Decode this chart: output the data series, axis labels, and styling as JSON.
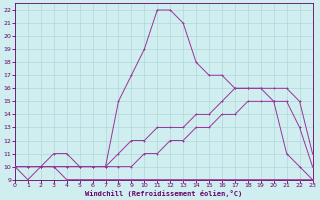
{
  "background_color": "#d0eef0",
  "line_color": "#993399",
  "grid_color": "#b0d8d8",
  "xlabel": "Windchill (Refroidissement éolien,°C)",
  "xlabel_color": "#660066",
  "tick_color": "#660066",
  "xmin": 0,
  "xmax": 23,
  "ymin": 9,
  "ymax": 22.5,
  "ytick_labels": [
    "",
    "10",
    "",
    "",
    "13",
    "",
    "",
    "16",
    "",
    "",
    "19",
    "",
    "",
    "22"
  ],
  "yticks": [
    9,
    10,
    11,
    12,
    13,
    14,
    15,
    16,
    17,
    18,
    19,
    20,
    21,
    22
  ],
  "xticks": [
    0,
    1,
    2,
    3,
    4,
    5,
    6,
    7,
    8,
    9,
    10,
    11,
    12,
    13,
    14,
    15,
    16,
    17,
    18,
    19,
    20,
    21,
    22,
    23
  ],
  "lines": [
    {
      "x": [
        0,
        1,
        2,
        3,
        4,
        5,
        6,
        7,
        8,
        9,
        10,
        11,
        12,
        13,
        14,
        15,
        16,
        17,
        18,
        19,
        20,
        21,
        22,
        23
      ],
      "y": [
        10,
        9,
        10,
        10,
        9,
        9,
        9,
        9,
        9,
        9,
        9,
        9,
        9,
        9,
        9,
        9,
        9,
        9,
        9,
        9,
        9,
        9,
        9,
        9
      ]
    },
    {
      "x": [
        0,
        1,
        2,
        3,
        4,
        5,
        6,
        7,
        8,
        9,
        10,
        11,
        12,
        13,
        14,
        15,
        16,
        17,
        18,
        19,
        20,
        21,
        22,
        23
      ],
      "y": [
        10,
        10,
        10,
        10,
        10,
        10,
        10,
        10,
        10,
        10,
        11,
        11,
        12,
        12,
        13,
        13,
        14,
        14,
        15,
        15,
        15,
        15,
        13,
        10
      ]
    },
    {
      "x": [
        0,
        1,
        2,
        3,
        4,
        5,
        6,
        7,
        8,
        9,
        10,
        11,
        12,
        13,
        14,
        15,
        16,
        17,
        18,
        19,
        20,
        21,
        22,
        23
      ],
      "y": [
        10,
        10,
        10,
        10,
        10,
        10,
        10,
        10,
        11,
        12,
        12,
        13,
        13,
        13,
        14,
        14,
        15,
        16,
        16,
        16,
        16,
        16,
        15,
        11
      ]
    },
    {
      "x": [
        0,
        1,
        2,
        3,
        4,
        5,
        6,
        7,
        8,
        9,
        10,
        11,
        12,
        13,
        14,
        15,
        16,
        17,
        18,
        19,
        20,
        21,
        22,
        23
      ],
      "y": [
        10,
        10,
        10,
        11,
        11,
        10,
        10,
        10,
        15,
        17,
        19,
        22,
        22,
        21,
        18,
        17,
        17,
        16,
        16,
        16,
        15,
        11,
        10,
        9
      ]
    }
  ]
}
